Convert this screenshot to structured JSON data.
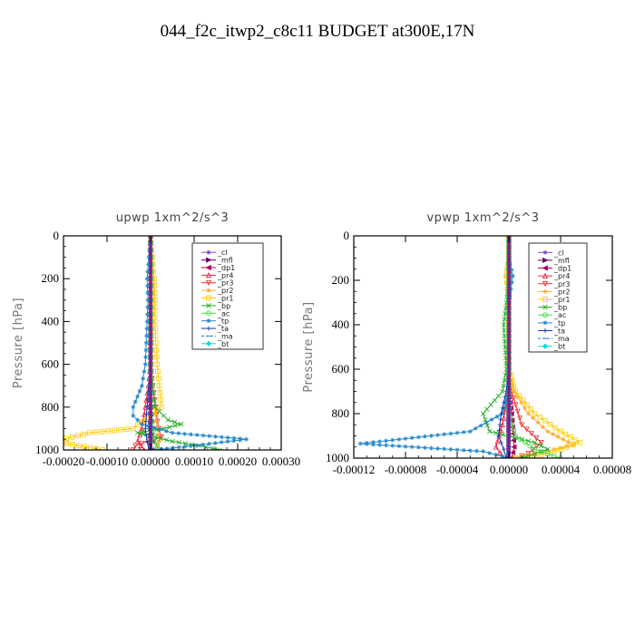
{
  "title": "044_f2c_itwp2_c8c11  BUDGET at300E,17N",
  "chart_data": [
    {
      "type": "line",
      "title": "upwp   1xm^2/s^3",
      "ylabel": "Pressure [hPa]",
      "xlim": [
        -0.0002,
        0.0003
      ],
      "ylim": [
        1000,
        0
      ],
      "xticks": [
        -0.0002,
        -0.0001,
        0.0,
        0.0001,
        0.0002,
        0.0003
      ],
      "xtick_labels": [
        "-0.00020",
        "-0.00010",
        "0.00000",
        "0.00010",
        "0.00020",
        "0.00030"
      ],
      "yticks": [
        0,
        200,
        400,
        600,
        800,
        1000
      ],
      "ytick_labels": [
        "0",
        "200",
        "400",
        "600",
        "800",
        "1000"
      ],
      "legend_position": "top-right",
      "series": [
        {
          "name": "_cl",
          "color": "#8844cc",
          "marker": "star",
          "x": [
            0,
            0,
            0,
            0,
            0,
            0,
            0,
            0,
            0,
            0,
            0
          ],
          "y": [
            0,
            100,
            200,
            300,
            400,
            500,
            600,
            700,
            800,
            900,
            1000
          ]
        },
        {
          "name": "_mfl",
          "color": "#660066",
          "marker": "tri-right",
          "x": [
            0,
            0,
            0,
            0,
            0,
            0,
            0,
            0,
            0,
            0,
            0
          ],
          "y": [
            0,
            100,
            200,
            300,
            400,
            500,
            600,
            700,
            800,
            900,
            1000
          ]
        },
        {
          "name": "_dp1",
          "color": "#aa0055",
          "marker": "tri-left",
          "x": [
            0,
            0,
            0,
            0,
            0,
            0,
            0,
            0,
            0,
            2e-06,
            4e-06,
            2e-06
          ],
          "y": [
            0,
            100,
            200,
            300,
            400,
            500,
            600,
            700,
            800,
            900,
            960,
            1000
          ]
        },
        {
          "name": "_pr4",
          "color": "#ee2244",
          "marker": "tri-up",
          "x": [
            0,
            0,
            0,
            0,
            0,
            0,
            0,
            -5e-06,
            -1.2e-05,
            -2e-05,
            -3e-05,
            -1.5e-05
          ],
          "y": [
            0,
            100,
            200,
            300,
            400,
            500,
            600,
            700,
            800,
            900,
            960,
            1000
          ]
        },
        {
          "name": "_pr3",
          "color": "#ee3333",
          "marker": "tri-down",
          "x": [
            0,
            0,
            0,
            0,
            0,
            0,
            0,
            5e-06,
            1.2e-05,
            1.8e-05,
            2.5e-05,
            -3.5e-05,
            -4e-05
          ],
          "y": [
            0,
            100,
            200,
            300,
            400,
            500,
            600,
            700,
            800,
            900,
            940,
            980,
            1000
          ]
        },
        {
          "name": "_pr2",
          "color": "#ffaa33",
          "marker": "star",
          "x": [
            0,
            4e-06,
            6e-06,
            6e-06,
            5e-06,
            4e-06,
            3e-06,
            5e-06,
            1e-05,
            1.5e-05,
            2e-05,
            1e-05
          ],
          "y": [
            0,
            100,
            200,
            300,
            400,
            500,
            600,
            700,
            800,
            900,
            960,
            1000
          ]
        },
        {
          "name": "_pr1",
          "color": "#ffcc00",
          "marker": "square",
          "x": [
            0,
            4e-06,
            8e-06,
            1e-05,
            1e-05,
            1.2e-05,
            1.5e-05,
            2e-05,
            2.5e-05,
            -4e-05,
            -0.00014,
            -0.00022,
            -0.00011
          ],
          "y": [
            0,
            100,
            200,
            300,
            400,
            500,
            600,
            700,
            800,
            900,
            920,
            960,
            1000
          ]
        },
        {
          "name": "_bp",
          "color": "#22aa22",
          "marker": "x",
          "x": [
            0,
            0,
            0,
            0,
            0,
            0,
            0,
            5e-06,
            1e-05,
            4e-05,
            7e-05,
            3e-05,
            -3e-05,
            5e-05,
            0.00011,
            0.00016
          ],
          "y": [
            0,
            100,
            200,
            300,
            400,
            500,
            600,
            700,
            800,
            860,
            880,
            900,
            920,
            960,
            980,
            1000
          ]
        },
        {
          "name": "_ac",
          "color": "#44dd44",
          "marker": "circle",
          "x": [
            0,
            0,
            0,
            0,
            0,
            0,
            0,
            0,
            2e-06,
            5e-06,
            1e-05,
            2e-05
          ],
          "y": [
            0,
            100,
            200,
            300,
            400,
            500,
            600,
            700,
            800,
            900,
            960,
            1000
          ]
        },
        {
          "name": "_tp",
          "color": "#2288cc",
          "marker": "asterisk",
          "x": [
            0,
            -4e-06,
            -8e-06,
            -6e-06,
            -8e-06,
            -1e-05,
            -1.2e-05,
            -2e-05,
            -4e-05,
            -4e-05,
            -2e-05,
            5e-05,
            0.00022,
            0.00012,
            1e-05
          ],
          "y": [
            0,
            100,
            200,
            300,
            400,
            500,
            600,
            700,
            800,
            840,
            880,
            920,
            950,
            975,
            1000
          ]
        },
        {
          "name": "_ta",
          "color": "#1133aa",
          "marker": "plus",
          "x": [
            0,
            0,
            0,
            0,
            0,
            0,
            0,
            -4e-06,
            -8e-06,
            -1.2e-05,
            -8e-06,
            -4e-06
          ],
          "y": [
            0,
            100,
            200,
            300,
            400,
            500,
            600,
            700,
            800,
            900,
            960,
            1000
          ]
        },
        {
          "name": "_ma",
          "color": "#2277dd",
          "marker": "dash",
          "x": [
            0,
            0,
            0,
            0,
            0,
            0,
            0,
            0,
            0,
            0,
            0
          ],
          "y": [
            0,
            100,
            200,
            300,
            400,
            500,
            600,
            700,
            800,
            900,
            1000
          ]
        },
        {
          "name": "_bt",
          "color": "#00dddd",
          "marker": "diamond",
          "x": [
            0,
            0,
            0,
            0,
            0,
            0,
            0,
            0,
            0,
            0,
            0
          ],
          "y": [
            0,
            100,
            200,
            300,
            400,
            500,
            600,
            700,
            800,
            900,
            1000
          ]
        }
      ]
    },
    {
      "type": "line",
      "title": "vpwp   1xm^2/s^3",
      "ylabel": "Pressure [hPa]",
      "xlim": [
        -0.00012,
        8e-05
      ],
      "ylim": [
        1000,
        0
      ],
      "xticks": [
        -0.00012,
        -8e-05,
        -4e-05,
        0.0,
        4e-05,
        8e-05
      ],
      "xtick_labels": [
        "-0.00012",
        "-0.00008",
        "-0.00004",
        "0.00000",
        "0.00004",
        "0.00008"
      ],
      "yticks": [
        0,
        200,
        400,
        600,
        800,
        1000
      ],
      "ytick_labels": [
        "0",
        "200",
        "400",
        "600",
        "800",
        "1000"
      ],
      "legend_position": "top-right",
      "series": [
        {
          "name": "_cl",
          "color": "#8844cc",
          "marker": "star",
          "x": [
            0,
            0,
            0,
            0,
            0,
            0,
            0,
            0,
            0,
            0,
            0
          ],
          "y": [
            0,
            100,
            200,
            300,
            400,
            500,
            600,
            700,
            800,
            900,
            1000
          ]
        },
        {
          "name": "_mfl",
          "color": "#660066",
          "marker": "tri-right",
          "x": [
            0,
            0,
            0,
            0,
            0,
            0,
            0,
            0,
            0,
            0,
            0
          ],
          "y": [
            0,
            100,
            200,
            300,
            400,
            500,
            600,
            700,
            800,
            900,
            1000
          ]
        },
        {
          "name": "_dp1",
          "color": "#aa0055",
          "marker": "tri-left",
          "x": [
            0,
            0,
            0,
            0,
            0,
            0,
            0,
            0,
            2e-06,
            4e-06,
            2e-06
          ],
          "y": [
            0,
            100,
            200,
            300,
            400,
            500,
            600,
            700,
            800,
            950,
            1000
          ]
        },
        {
          "name": "_pr4",
          "color": "#ee2244",
          "marker": "tri-up",
          "x": [
            0,
            0,
            0,
            0,
            0,
            0,
            0,
            0,
            -5e-06,
            -1e-05,
            -4e-06
          ],
          "y": [
            0,
            100,
            200,
            300,
            400,
            500,
            600,
            700,
            850,
            950,
            1000
          ]
        },
        {
          "name": "_pr3",
          "color": "#ee3333",
          "marker": "tri-down",
          "x": [
            0,
            0,
            0,
            0,
            0,
            0,
            0,
            2e-06,
            1e-05,
            2.5e-05,
            1.5e-05,
            5e-06
          ],
          "y": [
            0,
            100,
            200,
            300,
            400,
            500,
            600,
            700,
            850,
            930,
            980,
            1000
          ]
        },
        {
          "name": "_pr2",
          "color": "#ffaa33",
          "marker": "star",
          "x": [
            0,
            0,
            -2e-06,
            0,
            0,
            0,
            0,
            4e-06,
            1.5e-05,
            3e-05,
            5e-05,
            2e-05,
            4e-06
          ],
          "y": [
            0,
            100,
            180,
            300,
            400,
            500,
            600,
            700,
            800,
            880,
            940,
            980,
            1000
          ]
        },
        {
          "name": "_pr1",
          "color": "#ffcc00",
          "marker": "square",
          "x": [
            0,
            0,
            -2e-06,
            0,
            0,
            0,
            0,
            5e-06,
            2e-05,
            4e-05,
            5.5e-05,
            3e-05,
            5e-06
          ],
          "y": [
            0,
            100,
            180,
            300,
            400,
            500,
            600,
            700,
            800,
            880,
            930,
            980,
            1000
          ]
        },
        {
          "name": "_bp",
          "color": "#22aa22",
          "marker": "x",
          "x": [
            0,
            0,
            0,
            -2e-06,
            -4e-06,
            -3e-06,
            -2e-06,
            -5e-06,
            -2e-05,
            -1.5e-05,
            2e-05,
            3e-05,
            1e-05
          ],
          "y": [
            0,
            100,
            200,
            300,
            400,
            500,
            600,
            700,
            800,
            880,
            930,
            960,
            1000
          ]
        },
        {
          "name": "_ac",
          "color": "#44dd44",
          "marker": "circle",
          "x": [
            0,
            0,
            0,
            0,
            0,
            0,
            0,
            0,
            0,
            5e-06,
            2e-05,
            4e-05
          ],
          "y": [
            0,
            100,
            200,
            300,
            400,
            500,
            600,
            700,
            800,
            900,
            960,
            1000
          ]
        },
        {
          "name": "_tp",
          "color": "#2288cc",
          "marker": "asterisk",
          "x": [
            0,
            0,
            3e-06,
            0,
            0,
            0,
            0,
            0,
            -5e-06,
            -3e-05,
            -0.000115,
            -2e-05,
            0
          ],
          "y": [
            0,
            100,
            180,
            300,
            400,
            500,
            600,
            700,
            800,
            880,
            935,
            970,
            1000
          ]
        },
        {
          "name": "_ta",
          "color": "#1133aa",
          "marker": "plus",
          "x": [
            0,
            0,
            0,
            0,
            0,
            0,
            0,
            -2e-06,
            -6e-06,
            -8e-06,
            -4e-06,
            -2e-06
          ],
          "y": [
            0,
            100,
            200,
            300,
            400,
            500,
            600,
            700,
            800,
            900,
            960,
            1000
          ]
        },
        {
          "name": "_ma",
          "color": "#2277dd",
          "marker": "dash",
          "x": [
            0,
            0,
            0,
            0,
            0,
            0,
            0,
            0,
            0,
            0,
            0
          ],
          "y": [
            0,
            100,
            200,
            300,
            400,
            500,
            600,
            700,
            800,
            900,
            1000
          ]
        },
        {
          "name": "_bt",
          "color": "#00dddd",
          "marker": "diamond",
          "x": [
            0,
            0,
            0,
            0,
            0,
            0,
            0,
            0,
            0,
            0,
            0
          ],
          "y": [
            0,
            100,
            200,
            300,
            400,
            500,
            600,
            700,
            800,
            900,
            1000
          ]
        }
      ]
    }
  ]
}
